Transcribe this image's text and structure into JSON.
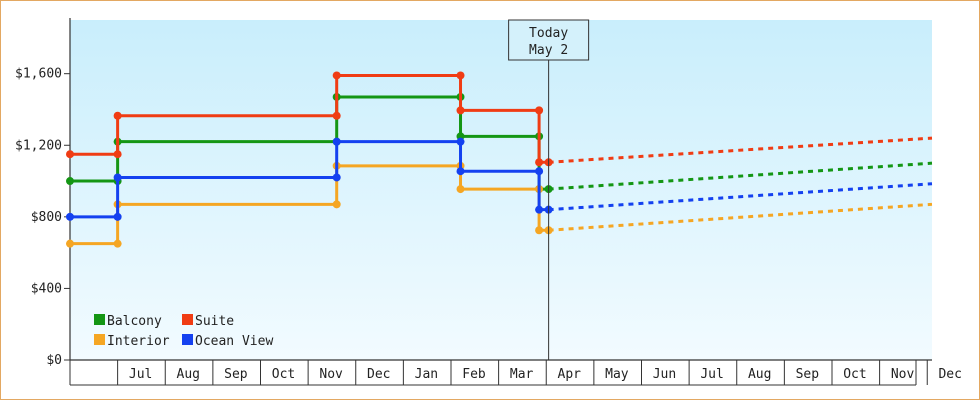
{
  "chart_data": {
    "type": "line",
    "title": "",
    "xlabel": "",
    "ylabel": "",
    "ylim": [
      0,
      1900
    ],
    "y_ticks": [
      0,
      400,
      800,
      1200,
      1600
    ],
    "y_tick_labels": [
      "$0",
      "$400",
      "$800",
      "$1,200",
      "$1,600"
    ],
    "x_range_months": [
      0,
      18.1
    ],
    "x_ticks": [
      {
        "label": "Jul",
        "m": 1
      },
      {
        "label": "Aug",
        "m": 2
      },
      {
        "label": "Sep",
        "m": 3
      },
      {
        "label": "Oct",
        "m": 4
      },
      {
        "label": "Nov",
        "m": 5
      },
      {
        "label": "Dec",
        "m": 6
      },
      {
        "label": "Jan",
        "m": 7
      },
      {
        "label": "Feb",
        "m": 8
      },
      {
        "label": "Mar",
        "m": 9
      },
      {
        "label": "Apr",
        "m": 10
      },
      {
        "label": "May",
        "m": 11
      },
      {
        "label": "Jun",
        "m": 12
      },
      {
        "label": "Jul",
        "m": 13
      },
      {
        "label": "Aug",
        "m": 14
      },
      {
        "label": "Sep",
        "m": 15
      },
      {
        "label": "Oct",
        "m": 16
      },
      {
        "label": "Nov",
        "m": 17
      },
      {
        "label": "Dec",
        "m": 18
      }
    ],
    "today": {
      "line1": "Today",
      "line2": "May 2",
      "m": 10.05
    },
    "grid": false,
    "legend_position": "bottom-left",
    "series": [
      {
        "name": "Balcony",
        "color": "#149614",
        "history": [
          [
            0,
            1000
          ],
          [
            1,
            1000
          ],
          [
            1,
            1220
          ],
          [
            5.6,
            1220
          ],
          [
            5.6,
            1470
          ],
          [
            8.2,
            1470
          ],
          [
            8.2,
            1250
          ],
          [
            9.85,
            1250
          ],
          [
            9.85,
            955
          ],
          [
            10.05,
            955
          ]
        ],
        "forecast": [
          [
            10.05,
            955
          ],
          [
            18.1,
            1100
          ]
        ]
      },
      {
        "name": "Suite",
        "color": "#f03c14",
        "history": [
          [
            0,
            1150
          ],
          [
            1,
            1150
          ],
          [
            1,
            1365
          ],
          [
            5.6,
            1365
          ],
          [
            5.6,
            1590
          ],
          [
            8.2,
            1590
          ],
          [
            8.2,
            1395
          ],
          [
            9.85,
            1395
          ],
          [
            9.85,
            1105
          ],
          [
            10.05,
            1105
          ]
        ],
        "forecast": [
          [
            10.05,
            1105
          ],
          [
            18.1,
            1240
          ]
        ]
      },
      {
        "name": "Interior",
        "color": "#f5a623",
        "history": [
          [
            0,
            650
          ],
          [
            1,
            650
          ],
          [
            1,
            870
          ],
          [
            5.6,
            870
          ],
          [
            5.6,
            1085
          ],
          [
            8.2,
            1085
          ],
          [
            8.2,
            955
          ],
          [
            9.85,
            955
          ],
          [
            9.85,
            725
          ],
          [
            10.05,
            725
          ]
        ],
        "forecast": [
          [
            10.05,
            725
          ],
          [
            18.1,
            870
          ]
        ]
      },
      {
        "name": "Ocean View",
        "color": "#1441f0",
        "history": [
          [
            0,
            800
          ],
          [
            1,
            800
          ],
          [
            1,
            1020
          ],
          [
            5.6,
            1020
          ],
          [
            5.6,
            1220
          ],
          [
            8.2,
            1220
          ],
          [
            8.2,
            1055
          ],
          [
            9.85,
            1055
          ],
          [
            9.85,
            840
          ],
          [
            10.05,
            840
          ]
        ],
        "forecast": [
          [
            10.05,
            840
          ],
          [
            18.1,
            985
          ]
        ]
      }
    ],
    "legend_order": [
      "Balcony",
      "Suite",
      "Interior",
      "Ocean View"
    ]
  }
}
